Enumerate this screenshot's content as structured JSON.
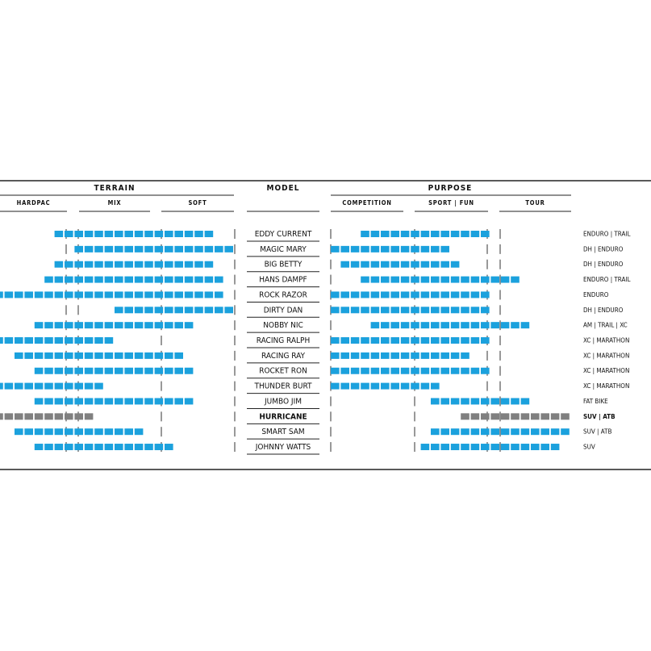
{
  "header": {
    "terrain": "TERRAIN",
    "model": "MODEL",
    "purpose": "PURPOSE"
  },
  "terrain_columns": [
    "HARDPAC",
    "MIX",
    "SOFT"
  ],
  "purpose_columns": [
    "COMPETITION",
    "SPORT | FUN",
    "TOUR"
  ],
  "color": "#1ba1dd",
  "rows": [
    {
      "model": "EDDY CURRENT",
      "use": "ENDURO | TRAIL",
      "terrain": [
        6,
        22
      ],
      "purpose": [
        3,
        16
      ]
    },
    {
      "model": "MAGIC MARY",
      "use": "DH | ENDURO",
      "terrain": [
        8,
        24
      ],
      "purpose": [
        0,
        12
      ]
    },
    {
      "model": "BIG BETTY",
      "use": "DH | ENDURO",
      "terrain": [
        6,
        22
      ],
      "purpose": [
        1,
        13
      ]
    },
    {
      "model": "HANS DAMPF",
      "use": "ENDURO | TRAIL",
      "terrain": [
        5,
        23
      ],
      "purpose": [
        3,
        19
      ]
    },
    {
      "model": "ROCK RAZOR",
      "use": "ENDURO",
      "terrain": [
        0,
        23
      ],
      "purpose": [
        0,
        16
      ]
    },
    {
      "model": "DIRTY DAN",
      "use": "DH | ENDURO",
      "terrain": [
        12,
        24
      ],
      "purpose": [
        0,
        16
      ]
    },
    {
      "model": "NOBBY NIC",
      "use": "AM | TRAIL | XC",
      "terrain": [
        4,
        20
      ],
      "purpose": [
        4,
        20
      ]
    },
    {
      "model": "RACING RALPH",
      "use": "XC | MARATHON",
      "terrain": [
        0,
        12
      ],
      "purpose": [
        0,
        16
      ]
    },
    {
      "model": "RACING RAY",
      "use": "XC | MARATHON",
      "terrain": [
        2,
        19
      ],
      "purpose": [
        0,
        14
      ]
    },
    {
      "model": "ROCKET RON",
      "use": "XC | MARATHON",
      "terrain": [
        4,
        20
      ],
      "purpose": [
        0,
        16
      ]
    },
    {
      "model": "THUNDER BURT",
      "use": "XC | MARATHON",
      "terrain": [
        0,
        11
      ],
      "purpose": [
        0,
        11
      ]
    },
    {
      "model": "JUMBO JIM",
      "use": "FAT BIKE",
      "terrain": [
        4,
        20
      ],
      "purpose": [
        10,
        20
      ]
    },
    {
      "model": "HURRICANE",
      "use": "SUV | ATB",
      "terrain": [
        0,
        10
      ],
      "purpose": [
        13,
        24
      ],
      "color": "#808080",
      "bold": true
    },
    {
      "model": "SMART SAM",
      "use": "SUV | ATB",
      "terrain": [
        2,
        15
      ],
      "purpose": [
        10,
        24
      ]
    },
    {
      "model": "JOHNNY WATTS",
      "use": "SUV",
      "terrain": [
        4,
        18
      ],
      "purpose": [
        9,
        23
      ]
    }
  ]
}
